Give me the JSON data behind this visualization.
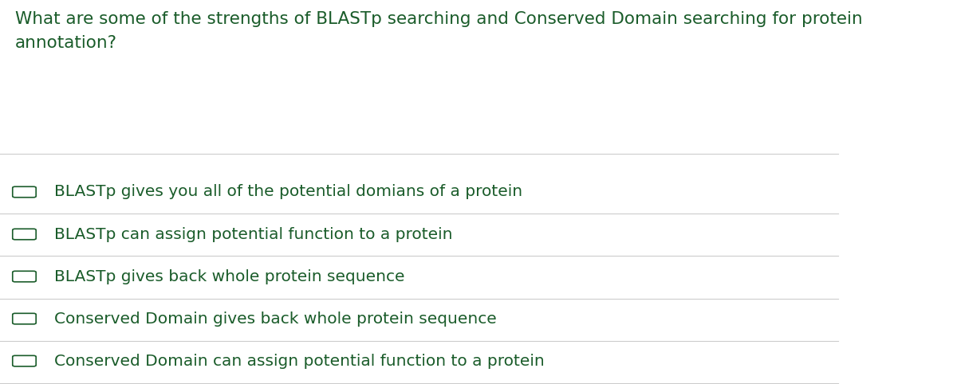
{
  "question": "What are some of the strengths of BLASTp searching and Conserved Domain searching for protein\nannotation?",
  "options": [
    "BLASTp gives you all of the potential domians of a protein",
    "BLASTp can assign potential function to a protein",
    "BLASTp gives back whole protein sequence",
    "Conserved Domain gives back whole protein sequence",
    "Conserved Domain can assign potential function to a protein"
  ],
  "background_color": "#ffffff",
  "text_color": "#1a5c2a",
  "question_fontsize": 15.5,
  "option_fontsize": 14.5,
  "separator_color": "#cccccc",
  "checkbox_color": "#1a5c2a",
  "fig_width": 12.0,
  "fig_height": 4.82
}
